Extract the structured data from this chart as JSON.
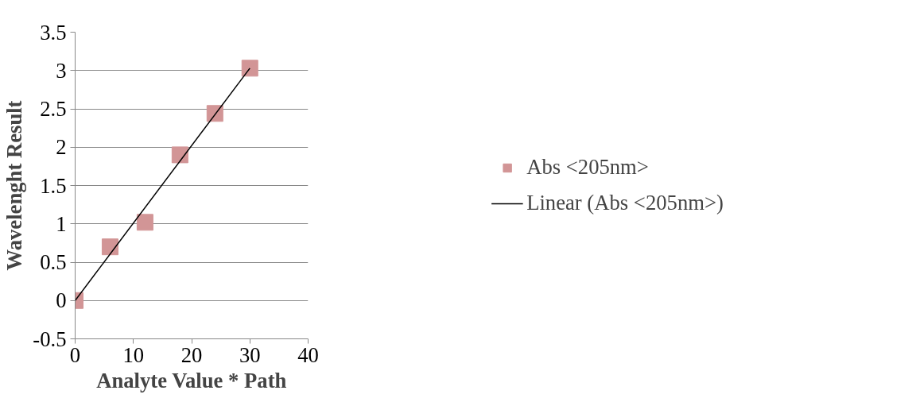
{
  "chart_data": {
    "type": "scatter",
    "xlabel": "Analyte Value * Path",
    "ylabel": "Wavelenght Result",
    "x": [
      0,
      6,
      12,
      18,
      24,
      30
    ],
    "series": [
      {
        "name": "Abs <205nm>",
        "color": "#d29596",
        "values": [
          0,
          0.7,
          1.02,
          1.9,
          2.44,
          3.03
        ]
      },
      {
        "name": "Linear (Abs <205nm>)",
        "type": "line",
        "marker": "none",
        "color": "#000000",
        "x": [
          0,
          30
        ],
        "values": [
          0,
          3.03
        ]
      }
    ],
    "xlim": [
      0,
      40
    ],
    "xticks": [
      0,
      10,
      20,
      30,
      40
    ],
    "ylim": [
      -0.5,
      3.5
    ],
    "yticks": [
      -0.5,
      0,
      0.5,
      1,
      1.5,
      2,
      2.5,
      3,
      3.5
    ],
    "grid": "y",
    "legend": "right",
    "marker": "square",
    "line_style": "solid"
  }
}
